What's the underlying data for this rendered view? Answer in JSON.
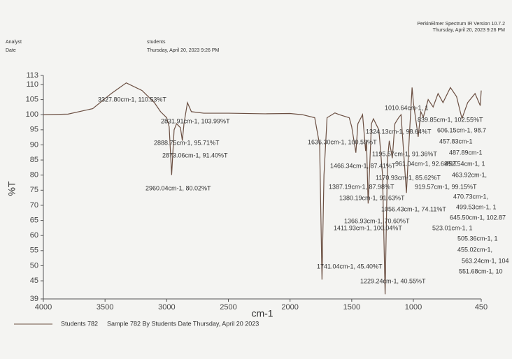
{
  "header": {
    "software": "PerkinElmer Spectrum IR Version 10.7.2",
    "timestamp": "Thursday, April 20, 2023 9:26 PM",
    "analyst_label": "Analyst",
    "analyst": "students",
    "date_label": "Date",
    "date": "Thursday, April 20, 2023 9:26 PM"
  },
  "chart_data": {
    "type": "line",
    "xlabel": "cm-1",
    "ylabel": "%T",
    "xlim": [
      4000,
      450
    ],
    "ylim": [
      39,
      113
    ],
    "xticks": [
      4000,
      3500,
      3000,
      2500,
      2000,
      1500,
      1000,
      450
    ],
    "yticks": [
      39,
      45,
      50,
      55,
      60,
      65,
      70,
      75,
      80,
      85,
      90,
      95,
      100,
      105,
      110,
      113
    ],
    "x": [
      4000,
      3800,
      3600,
      3450,
      3327.8,
      3200,
      3100,
      3050,
      3000,
      2980,
      2960,
      2940,
      2920,
      2888.75,
      2873,
      2860,
      2831.9,
      2800,
      2700,
      2500,
      2200,
      2000,
      1900,
      1800,
      1760,
      1741,
      1725,
      1700,
      1636.3,
      1600,
      1520,
      1500,
      1466.3,
      1450,
      1411.9,
      1387.2,
      1380.2,
      1366.9,
      1340,
      1324.1,
      1280,
      1250,
      1229.2,
      1210,
      1195.6,
      1170.9,
      1150,
      1120,
      1100,
      1056.4,
      1030,
      1010.6,
      1000,
      961,
      940,
      919.6,
      880,
      839.9,
      800,
      760,
      700,
      650,
      606.2,
      560,
      500,
      457.8,
      450
    ],
    "series": [
      {
        "name": "Students 782",
        "color": "#6b4f42",
        "values": [
          100,
          100.2,
          102,
          107,
          110.53,
          108,
          104,
          101,
          99,
          96,
          80.02,
          95,
          97,
          95.71,
          91.4,
          97,
          103.99,
          101,
          100.5,
          100.5,
          100.3,
          100.4,
          100,
          99,
          90,
          45.4,
          80,
          99,
          100.59,
          100,
          99,
          96,
          87.41,
          97,
          100.04,
          87.98,
          91.63,
          70.6,
          97,
          98.64,
          95,
          80,
          40.55,
          85,
          91.36,
          85.62,
          97,
          99,
          100,
          74.11,
          95,
          109,
          104,
          92.68,
          101,
          99.15,
          105,
          102.55,
          107,
          104,
          109,
          106,
          98.7,
          104,
          107,
          103,
          108
        ]
      }
    ],
    "legend_note": "Sample 782 By Students Date Thursday, April 20 2023",
    "annotations": [
      "3327.80cm-1, 110.53%T",
      "2831.91cm-1, 103.99%T",
      "2888.75cm-1, 95.71%T",
      "2873.06cm-1, 91.40%T",
      "2960.04cm-1, 80.02%T",
      "1741.04cm-1, 45.40%T",
      "1229.24cm-1, 40.55%T",
      "1636.30cm-1, 100.59%T",
      "1324.13cm-1, 98.64%T",
      "1195.57cm-1, 91.36%T",
      "1466.34cm-1, 87.41%T",
      "961.04cm-1, 92.68%T",
      "1170.93cm-1, 85.62%T",
      "1387.19cm-1, 87.98%T",
      "919.57cm-1, 99.15%T",
      "1380.19cm-1, 91.63%T",
      "1056.43cm-1, 74.11%T",
      "1366.93cm-1, 70.60%T",
      "1411.93cm-1, 100.04%T",
      "1010.64cm-1, 1",
      "839.85cm-1, 102.55%T",
      "606.15cm-1, 98.7",
      "457.83cm-1",
      "487.89cm-1",
      "452.54cm-1, 1",
      "463.92cm-1,",
      "470.73cm-1,",
      "499.53cm-1, 1",
      "645.50cm-1, 102.87",
      "523.01cm-1, 1",
      "505.36cm-1, 1",
      "455.02cm-1,",
      "563.24cm-1, 104",
      "551.68cm-1, 10"
    ]
  }
}
